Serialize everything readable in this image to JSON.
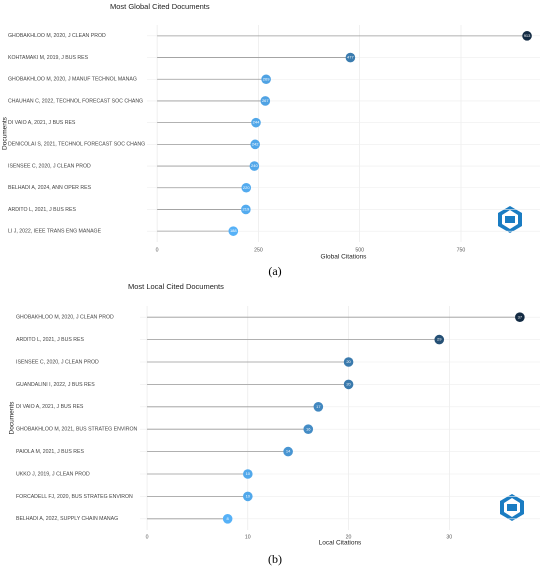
{
  "chart_data": [
    {
      "type": "lollipop",
      "title": "Most Global Cited Documents",
      "x_label": "Global Citations",
      "y_label": "Documents",
      "caption": "(a)",
      "categories": [
        "GHOBAKHLOO M, 2020, J CLEAN PROD",
        "KOHTAMAKI M, 2019, J BUS RES",
        "GHOBAKHLOO M, 2020, J MANUF TECHNOL MANAG",
        "CHAUHAN C, 2022, TECHNOL FORECAST SOC CHANG",
        "DI VAIO A, 2021, J BUS RES",
        "DENICOLAI S, 2021, TECHNOL FORECAST SOC CHANG",
        "ISENSEE C, 2020, J CLEAN PROD",
        "BELHADI A, 2024, ANN OPER RES",
        "ARDITO L, 2021, J BUS RES",
        "LI J, 2022, IEEE TRANS ENG MANAGE"
      ],
      "values": [
        913,
        477,
        269,
        267,
        244,
        242,
        240,
        220,
        219,
        188
      ],
      "xlim": [
        -25,
        945
      ],
      "xticks": [
        0,
        250,
        500,
        750
      ],
      "color_scale": [
        "#56b1f7",
        "#132b43"
      ],
      "line_color": "#999999",
      "grid": true
    },
    {
      "type": "lollipop",
      "title": "Most Local Cited Documents",
      "x_label": "Local Citations",
      "y_label": "Documents",
      "caption": "(b)",
      "categories": [
        "GHOBAKHLOO M, 2020, J CLEAN PROD",
        "ARDITO L, 2021, J BUS RES",
        "ISENSEE C, 2020, J CLEAN PROD",
        "GUANDALINI I, 2022, J BUS RES",
        "DI VAIO A, 2021, J BUS RES",
        "GHOBAKHLOO M, 2021, BUS STRATEG ENVIRON",
        "PAIOLA M, 2021, J BUS RES",
        "UKKO J, 2019, J CLEAN PROD",
        "FORCADELL FJ, 2020, BUS STRATEG ENVIRON",
        "BELHADI A, 2022, SUPPLY CHAIN MANAG"
      ],
      "values": [
        37,
        29,
        20,
        20,
        17,
        16,
        14,
        10,
        10,
        8
      ],
      "xlim": [
        -0.7,
        39
      ],
      "xticks": [
        0,
        10,
        20,
        30
      ],
      "color_scale": [
        "#56b1f7",
        "#132b43"
      ],
      "line_color": "#999999",
      "grid": true
    }
  ]
}
